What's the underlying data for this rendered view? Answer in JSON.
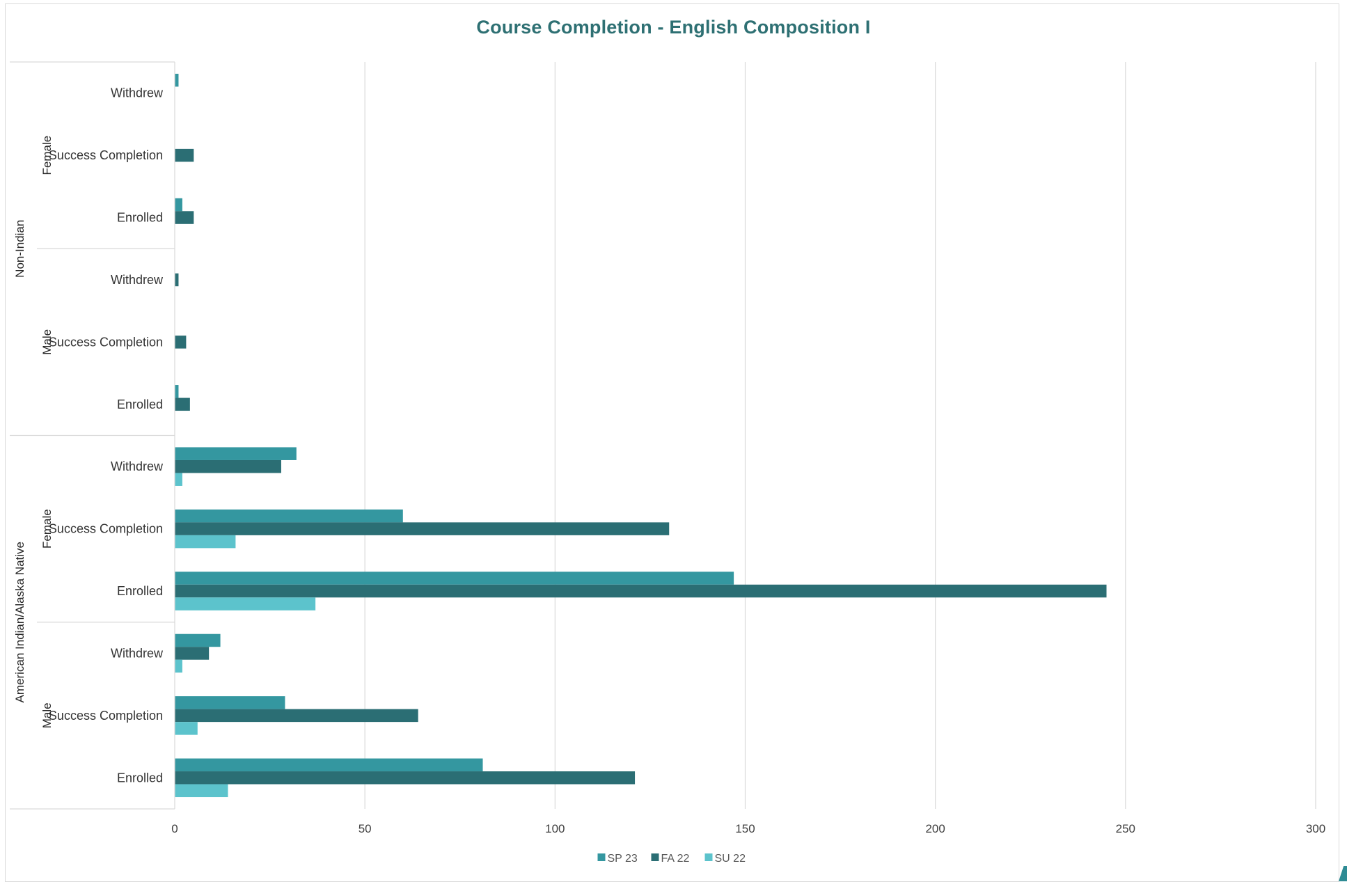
{
  "chart_data": {
    "type": "bar",
    "orientation": "horizontal",
    "title": "Course Completion - English Composition I",
    "xlabel": "",
    "ylabel": "",
    "xlim": [
      0,
      300
    ],
    "xticks": [
      0,
      50,
      100,
      150,
      200,
      250,
      300
    ],
    "grid": true,
    "legend_position": "bottom",
    "categories_bottom_to_top": [
      "Enrolled",
      "Success Completion",
      "Withdrew",
      "Enrolled",
      "Success Completion",
      "Withdrew",
      "Enrolled",
      "Success Completion",
      "Withdrew",
      "Enrolled",
      "Success Completion",
      "Withdrew"
    ],
    "groups": [
      {
        "label": "American Indian/Alaska Native",
        "subgroups": [
          "Male",
          "Female"
        ]
      },
      {
        "label": "Non-Indian",
        "subgroups": [
          "Male",
          "Female"
        ]
      }
    ],
    "series": [
      {
        "name": "SP 23",
        "color": "#3497a0",
        "values": [
          81,
          29,
          12,
          147,
          60,
          32,
          1,
          0,
          0,
          2,
          0,
          1
        ]
      },
      {
        "name": "FA 22",
        "color": "#2b6e74",
        "values": [
          121,
          64,
          9,
          245,
          130,
          28,
          4,
          3,
          1,
          5,
          5,
          0
        ]
      },
      {
        "name": "SU 22",
        "color": "#5cc3cc",
        "values": [
          14,
          6,
          2,
          37,
          16,
          2,
          0,
          0,
          0,
          0,
          0,
          0
        ]
      }
    ]
  }
}
